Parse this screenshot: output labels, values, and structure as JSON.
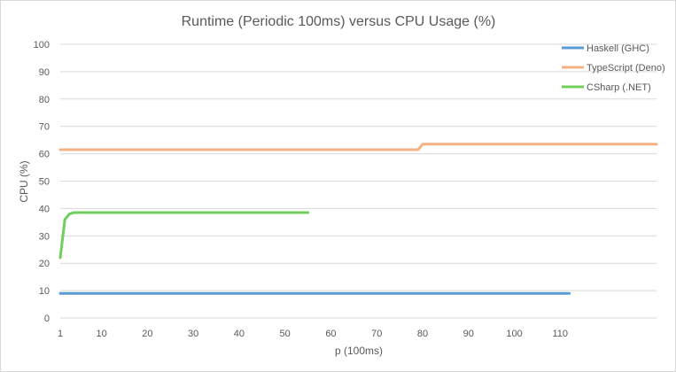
{
  "chart_data": {
    "type": "line",
    "title": "Runtime (Periodic 100ms) versus CPU Usage (%)",
    "xlabel": "p (100ms)",
    "ylabel": "CPU (%)",
    "ylim": [
      0,
      100
    ],
    "yticks": [
      0,
      10,
      20,
      30,
      40,
      50,
      60,
      70,
      80,
      90,
      100
    ],
    "xlim": [
      1,
      131
    ],
    "xticks": [
      1,
      10,
      20,
      30,
      40,
      50,
      60,
      70,
      80,
      90,
      100,
      110
    ],
    "grid": true,
    "legend_position": "top-right",
    "series": [
      {
        "name": "Haskell (GHC)",
        "color": "#5b9bd5",
        "points": [
          [
            1,
            9
          ],
          [
            112,
            9
          ]
        ]
      },
      {
        "name": "TypeScript (Deno)",
        "color": "#f4b183",
        "points": [
          [
            1,
            61.5
          ],
          [
            79,
            61.5
          ],
          [
            80,
            63.5
          ],
          [
            131,
            63.5
          ]
        ]
      },
      {
        "name": "CSharp (.NET)",
        "color": "#70ce5a",
        "points": [
          [
            1,
            22
          ],
          [
            2,
            36
          ],
          [
            3,
            38
          ],
          [
            4,
            38.5
          ],
          [
            5,
            38.5
          ],
          [
            55,
            38.5
          ]
        ]
      }
    ]
  }
}
